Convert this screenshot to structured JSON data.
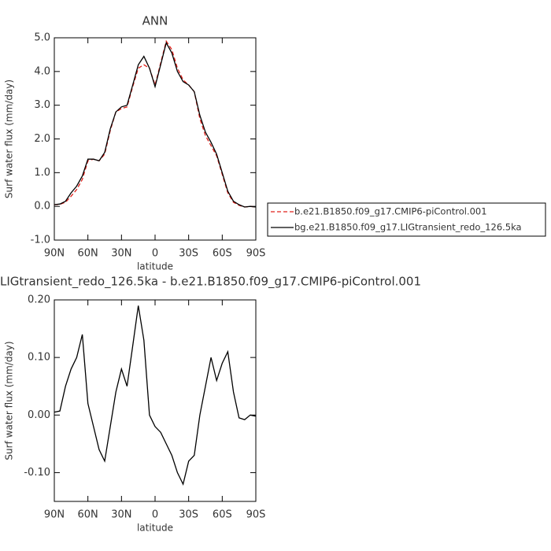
{
  "chart_data": [
    {
      "type": "line",
      "title": "ANN",
      "xlabel": "latitude",
      "ylabel": "Surf water flux (mm/day)",
      "x": [
        90,
        85,
        80,
        75,
        70,
        65,
        60,
        55,
        50,
        45,
        40,
        35,
        30,
        25,
        20,
        15,
        10,
        5,
        0,
        -5,
        -10,
        -15,
        -20,
        -25,
        -30,
        -35,
        -40,
        -45,
        -50,
        -55,
        -60,
        -65,
        -70,
        -75,
        -80,
        -85,
        -90
      ],
      "xlim": [
        90,
        -90
      ],
      "xticks": [
        {
          "value": 90,
          "label": "90N"
        },
        {
          "value": 60,
          "label": "60N"
        },
        {
          "value": 30,
          "label": "30N"
        },
        0,
        {
          "value": -30,
          "label": "30S"
        },
        {
          "value": -60,
          "label": "60S"
        },
        {
          "value": -90,
          "label": "90S"
        }
      ],
      "ylim": [
        -1,
        5
      ],
      "yticks": [
        {
          "value": -1,
          "label": "-1.0"
        },
        {
          "value": 0,
          "label": "0.0"
        },
        {
          "value": 1,
          "label": "1.0"
        },
        {
          "value": 2,
          "label": "2.0"
        },
        {
          "value": 3,
          "label": "3.0"
        },
        {
          "value": 4,
          "label": "4.0"
        },
        {
          "value": 5,
          "label": "5.0"
        }
      ],
      "legend": "right",
      "series": [
        {
          "name": "b.e21.B1850.f09_g17.CMIP6-piControl.001",
          "color": "#e0201a",
          "dashed": true,
          "values": [
            0.05,
            0.06,
            0.12,
            0.3,
            0.5,
            0.8,
            1.35,
            1.4,
            1.35,
            1.55,
            2.25,
            2.8,
            2.9,
            2.95,
            3.55,
            4.1,
            4.2,
            4.1,
            3.6,
            4.25,
            4.9,
            4.65,
            4.1,
            3.75,
            3.6,
            3.4,
            2.6,
            2.1,
            1.8,
            1.5,
            0.95,
            0.4,
            0.12,
            0.03,
            -0.02,
            0.0,
            -0.02
          ]
        },
        {
          "name": "bg.e21.B1850.f09_g17.LIGtransient_redo_126.5ka",
          "color": "#000000",
          "dashed": false,
          "values": [
            0.05,
            0.07,
            0.15,
            0.4,
            0.6,
            0.9,
            1.4,
            1.4,
            1.35,
            1.6,
            2.3,
            2.8,
            2.95,
            3.0,
            3.6,
            4.2,
            4.45,
            4.1,
            3.55,
            4.2,
            4.85,
            4.55,
            4.0,
            3.7,
            3.6,
            3.4,
            2.7,
            2.2,
            1.9,
            1.55,
            1.0,
            0.45,
            0.15,
            0.05,
            -0.02,
            0.0,
            -0.02
          ]
        }
      ]
    },
    {
      "type": "line",
      "title": "LIGtransient_redo_126.5ka - b.e21.B1850.f09_g17.CMIP6-piControl.001",
      "xlabel": "latitude",
      "ylabel": "Surf water flux (mm/day)",
      "x": [
        90,
        85,
        80,
        75,
        70,
        65,
        60,
        55,
        50,
        45,
        40,
        35,
        30,
        25,
        20,
        15,
        10,
        5,
        0,
        -5,
        -10,
        -15,
        -20,
        -25,
        -30,
        -35,
        -40,
        -45,
        -50,
        -55,
        -60,
        -65,
        -70,
        -75,
        -80,
        -85,
        -90
      ],
      "xlim": [
        90,
        -90
      ],
      "xticks": [
        {
          "value": 90,
          "label": "90N"
        },
        {
          "value": 60,
          "label": "60N"
        },
        {
          "value": 30,
          "label": "30N"
        },
        0,
        {
          "value": -30,
          "label": "30S"
        },
        {
          "value": -60,
          "label": "60S"
        },
        {
          "value": -90,
          "label": "90S"
        }
      ],
      "ylim": [
        -0.15,
        0.2
      ],
      "yticks": [
        {
          "value": -0.1,
          "label": "-0.10"
        },
        {
          "value": 0,
          "label": "0.00"
        },
        {
          "value": 0.1,
          "label": "0.10"
        },
        {
          "value": 0.2,
          "label": "0.20"
        }
      ],
      "color": "#000000",
      "values": [
        0.005,
        0.007,
        0.05,
        0.08,
        0.1,
        0.14,
        0.02,
        -0.02,
        -0.06,
        -0.08,
        -0.02,
        0.04,
        0.08,
        0.05,
        0.12,
        0.19,
        0.13,
        0.0,
        -0.02,
        -0.03,
        -0.05,
        -0.07,
        -0.1,
        -0.12,
        -0.08,
        -0.07,
        0.0,
        0.05,
        0.1,
        0.06,
        0.09,
        0.11,
        0.04,
        -0.005,
        -0.008,
        0.0,
        -0.002
      ]
    }
  ]
}
